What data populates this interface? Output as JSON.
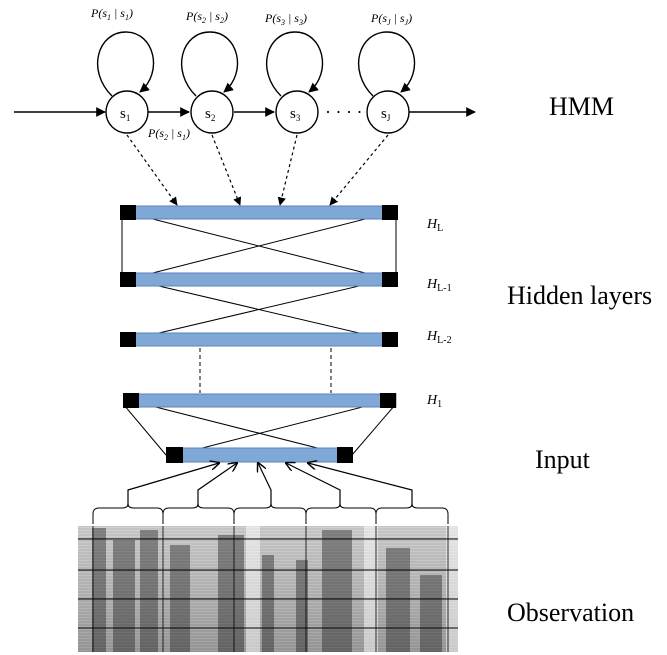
{
  "hmm": {
    "states": [
      {
        "label": "s",
        "sub": "1"
      },
      {
        "label": "s",
        "sub": "2"
      },
      {
        "label": "s",
        "sub": "3"
      },
      {
        "label": "s",
        "sub": "J"
      }
    ],
    "self_transitions": [
      {
        "pre": "P(s",
        "sub1": "1",
        "mid": " | s",
        "sub2": "1",
        "post": ")"
      },
      {
        "pre": "P(s",
        "sub1": "2",
        "mid": " | s",
        "sub2": "2",
        "post": ")"
      },
      {
        "pre": "P(s",
        "sub1": "3",
        "mid": " | s",
        "sub2": "3",
        "post": ")"
      },
      {
        "pre": "P(s",
        "sub1": "J",
        "mid": " | s",
        "sub2": "J",
        "post": ")"
      }
    ],
    "transition": {
      "pre": "P(s",
      "sub1": "2",
      "mid": " | s",
      "sub2": "1",
      "post": ")"
    },
    "ellipsis": "· · · ·"
  },
  "hidden_layers": [
    {
      "label": "H",
      "sub": "L"
    },
    {
      "label": "H",
      "sub": "L-1"
    },
    {
      "label": "H",
      "sub": "L-2"
    },
    {
      "label": "H",
      "sub": "1"
    }
  ],
  "section_labels": {
    "hmm": "HMM",
    "hidden": "Hidden layers",
    "input": "Input",
    "observation": "Observation"
  },
  "colors": {
    "layer_fill": "#7fa8d6",
    "layer_stroke": "#5b83b5",
    "node_cap": "#000000",
    "line": "#000000"
  }
}
